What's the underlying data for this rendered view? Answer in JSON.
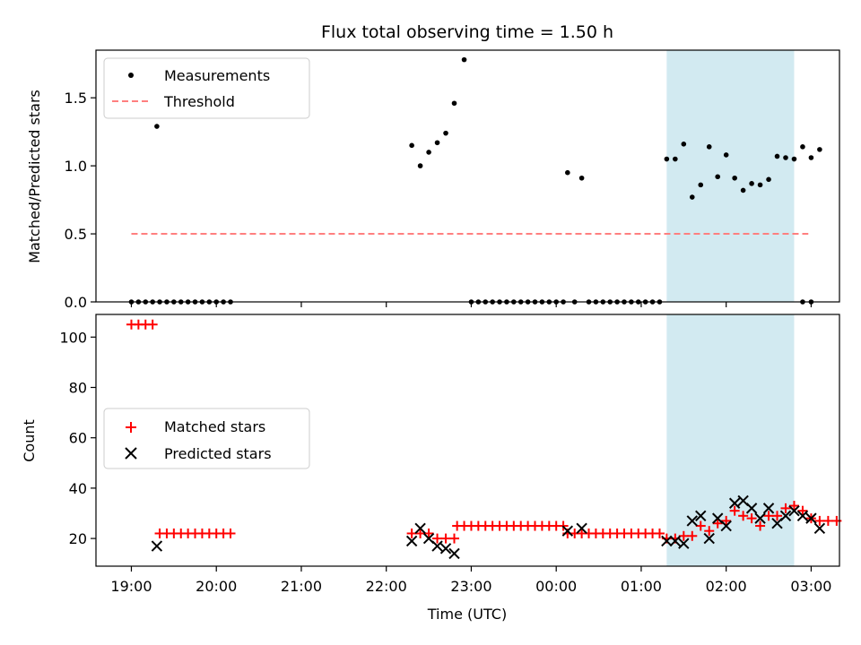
{
  "chart_data": [
    {
      "type": "scatter",
      "title": "Flux total observing time = 1.50 h",
      "xlabel": "",
      "ylabel": "Matched/Predicted stars",
      "xlim": [
        "18:35",
        "03:20"
      ],
      "ylim": [
        0,
        1.85
      ],
      "yticks": [
        0.0,
        0.5,
        1.0,
        1.5
      ],
      "ytick_labels": [
        "0.0",
        "0.5",
        "1.0",
        "1.5"
      ],
      "highlight_span": {
        "x0": "01:18",
        "x1": "02:48",
        "color": "#add8e6"
      },
      "legend": {
        "position": "upper-left"
      },
      "series": [
        {
          "name": "Measurements",
          "kind": "points",
          "color": "#000000",
          "points": [
            [
              "19:00",
              0
            ],
            [
              "19:05",
              0
            ],
            [
              "19:10",
              0
            ],
            [
              "19:15",
              0
            ],
            [
              "19:20",
              0
            ],
            [
              "19:18",
              1.29
            ],
            [
              "19:25",
              0
            ],
            [
              "19:30",
              0
            ],
            [
              "19:35",
              0
            ],
            [
              "19:40",
              0
            ],
            [
              "19:45",
              0
            ],
            [
              "19:50",
              0
            ],
            [
              "19:55",
              0
            ],
            [
              "20:00",
              0
            ],
            [
              "20:05",
              0
            ],
            [
              "20:10",
              0
            ],
            [
              "22:18",
              1.15
            ],
            [
              "22:24",
              1.0
            ],
            [
              "22:30",
              1.1
            ],
            [
              "22:36",
              1.17
            ],
            [
              "22:42",
              1.24
            ],
            [
              "22:48",
              1.46
            ],
            [
              "22:55",
              1.78
            ],
            [
              "23:00",
              0
            ],
            [
              "23:05",
              0
            ],
            [
              "23:10",
              0
            ],
            [
              "23:15",
              0
            ],
            [
              "23:20",
              0
            ],
            [
              "23:25",
              0
            ],
            [
              "23:30",
              0
            ],
            [
              "23:35",
              0
            ],
            [
              "23:40",
              0
            ],
            [
              "23:45",
              0
            ],
            [
              "23:50",
              0
            ],
            [
              "23:55",
              0
            ],
            [
              "00:00",
              0
            ],
            [
              "00:05",
              0
            ],
            [
              "00:08",
              0.95
            ],
            [
              "00:18",
              0.91
            ],
            [
              "00:13",
              0
            ],
            [
              "00:23",
              0
            ],
            [
              "00:28",
              0
            ],
            [
              "00:33",
              0
            ],
            [
              "00:38",
              0
            ],
            [
              "00:43",
              0
            ],
            [
              "00:48",
              0
            ],
            [
              "00:53",
              0
            ],
            [
              "00:58",
              0
            ],
            [
              "01:03",
              0
            ],
            [
              "01:08",
              0
            ],
            [
              "01:13",
              0
            ],
            [
              "01:18",
              1.05
            ],
            [
              "01:24",
              1.05
            ],
            [
              "01:30",
              1.16
            ],
            [
              "01:36",
              0.77
            ],
            [
              "01:42",
              0.86
            ],
            [
              "01:48",
              1.14
            ],
            [
              "01:54",
              0.92
            ],
            [
              "02:00",
              1.08
            ],
            [
              "02:06",
              0.91
            ],
            [
              "02:12",
              0.82
            ],
            [
              "02:18",
              0.87
            ],
            [
              "02:24",
              0.86
            ],
            [
              "02:30",
              0.9
            ],
            [
              "02:36",
              1.07
            ],
            [
              "02:42",
              1.06
            ],
            [
              "02:48",
              1.05
            ],
            [
              "02:54",
              1.14
            ],
            [
              "03:00",
              1.06
            ],
            [
              "03:06",
              1.12
            ],
            [
              "02:54",
              0
            ],
            [
              "03:00",
              0
            ]
          ]
        },
        {
          "name": "Threshold",
          "kind": "dashed-line",
          "color": "#ff7f7f",
          "x": [
            "19:00",
            "02:58"
          ],
          "y": [
            0.5,
            0.5
          ]
        }
      ]
    },
    {
      "type": "scatter",
      "xlabel": "Time (UTC)",
      "ylabel": "Count",
      "xlim": [
        "18:35",
        "03:20"
      ],
      "ylim": [
        9,
        109
      ],
      "xticks": [
        "19:00",
        "20:00",
        "21:00",
        "22:00",
        "23:00",
        "00:00",
        "01:00",
        "02:00",
        "03:00"
      ],
      "yticks": [
        20,
        40,
        60,
        80,
        100
      ],
      "ytick_labels": [
        "20",
        "40",
        "60",
        "80",
        "100"
      ],
      "highlight_span": {
        "x0": "01:18",
        "x1": "02:48",
        "color": "#add8e6"
      },
      "legend": {
        "position": "center-left"
      },
      "series": [
        {
          "name": "Matched stars",
          "kind": "plus",
          "color": "#ff0000",
          "points": [
            [
              "19:00",
              105
            ],
            [
              "19:05",
              105
            ],
            [
              "19:10",
              105
            ],
            [
              "19:15",
              105
            ],
            [
              "19:20",
              22
            ],
            [
              "19:25",
              22
            ],
            [
              "19:30",
              22
            ],
            [
              "19:35",
              22
            ],
            [
              "19:40",
              22
            ],
            [
              "19:45",
              22
            ],
            [
              "19:50",
              22
            ],
            [
              "19:55",
              22
            ],
            [
              "20:00",
              22
            ],
            [
              "20:05",
              22
            ],
            [
              "20:10",
              22
            ],
            [
              "22:18",
              22
            ],
            [
              "22:24",
              22
            ],
            [
              "22:30",
              22
            ],
            [
              "22:36",
              20
            ],
            [
              "22:42",
              20
            ],
            [
              "22:48",
              20
            ],
            [
              "22:50",
              25
            ],
            [
              "22:55",
              25
            ],
            [
              "23:00",
              25
            ],
            [
              "23:05",
              25
            ],
            [
              "23:10",
              25
            ],
            [
              "23:15",
              25
            ],
            [
              "23:20",
              25
            ],
            [
              "23:25",
              25
            ],
            [
              "23:30",
              25
            ],
            [
              "23:35",
              25
            ],
            [
              "23:40",
              25
            ],
            [
              "23:45",
              25
            ],
            [
              "23:50",
              25
            ],
            [
              "23:55",
              25
            ],
            [
              "00:00",
              25
            ],
            [
              "00:05",
              25
            ],
            [
              "00:08",
              22
            ],
            [
              "00:13",
              22
            ],
            [
              "00:18",
              22
            ],
            [
              "00:23",
              22
            ],
            [
              "00:28",
              22
            ],
            [
              "00:33",
              22
            ],
            [
              "00:38",
              22
            ],
            [
              "00:43",
              22
            ],
            [
              "00:48",
              22
            ],
            [
              "00:53",
              22
            ],
            [
              "00:58",
              22
            ],
            [
              "01:03",
              22
            ],
            [
              "01:08",
              22
            ],
            [
              "01:13",
              22
            ],
            [
              "01:18",
              20
            ],
            [
              "01:24",
              20
            ],
            [
              "01:30",
              21
            ],
            [
              "01:36",
              21
            ],
            [
              "01:42",
              25
            ],
            [
              "01:48",
              23
            ],
            [
              "01:54",
              26
            ],
            [
              "02:00",
              27
            ],
            [
              "02:06",
              31
            ],
            [
              "02:12",
              29
            ],
            [
              "02:18",
              28
            ],
            [
              "02:24",
              25
            ],
            [
              "02:30",
              29
            ],
            [
              "02:36",
              29
            ],
            [
              "02:42",
              32
            ],
            [
              "02:48",
              33
            ],
            [
              "02:54",
              31
            ],
            [
              "03:00",
              28
            ],
            [
              "03:06",
              27
            ],
            [
              "03:12",
              27
            ],
            [
              "03:18",
              27
            ]
          ]
        },
        {
          "name": "Predicted stars",
          "kind": "x",
          "color": "#000000",
          "points": [
            [
              "19:18",
              17
            ],
            [
              "22:18",
              19
            ],
            [
              "22:24",
              24
            ],
            [
              "22:30",
              20
            ],
            [
              "22:36",
              17
            ],
            [
              "22:42",
              16
            ],
            [
              "22:48",
              14
            ],
            [
              "00:08",
              23
            ],
            [
              "00:18",
              24
            ],
            [
              "01:18",
              19
            ],
            [
              "01:24",
              19
            ],
            [
              "01:30",
              18
            ],
            [
              "01:36",
              27
            ],
            [
              "01:42",
              29
            ],
            [
              "01:48",
              20
            ],
            [
              "01:54",
              28
            ],
            [
              "02:00",
              25
            ],
            [
              "02:06",
              34
            ],
            [
              "02:12",
              35
            ],
            [
              "02:18",
              32
            ],
            [
              "02:24",
              28
            ],
            [
              "02:30",
              32
            ],
            [
              "02:36",
              26
            ],
            [
              "02:42",
              29
            ],
            [
              "02:48",
              31
            ],
            [
              "02:54",
              29
            ],
            [
              "03:00",
              28
            ],
            [
              "03:06",
              24
            ]
          ]
        }
      ]
    }
  ]
}
